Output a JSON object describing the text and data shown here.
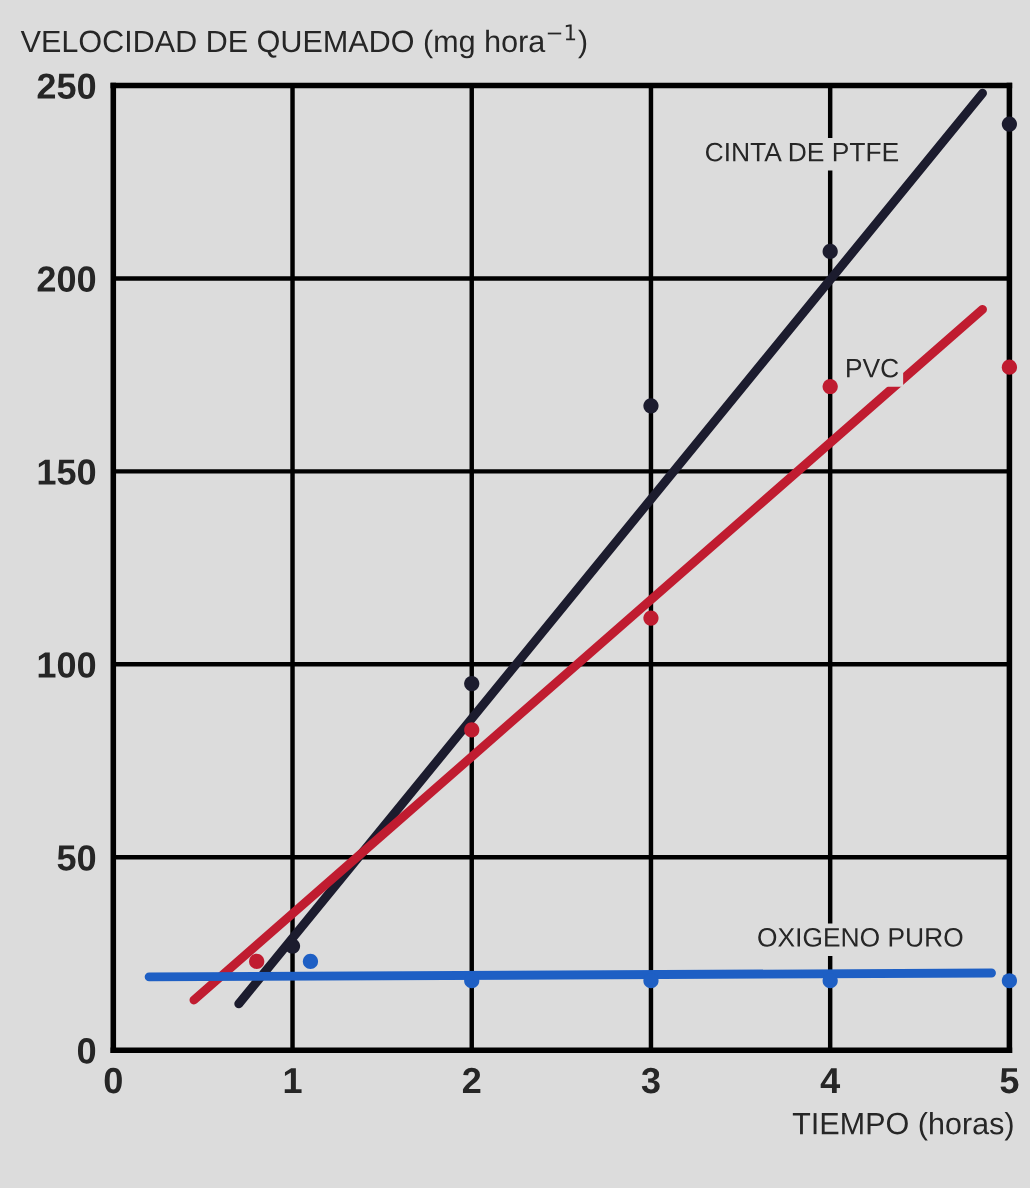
{
  "chart_data": {
    "type": "scatter",
    "ylabel": "VELOCIDAD DE QUEMADO (mg hora$^{−1}$)",
    "xlabel": "TIEMPO (horas)",
    "xlim": [
      0,
      5
    ],
    "xticks": [
      0,
      1,
      2,
      3,
      4,
      5
    ],
    "ylim": [
      0,
      250
    ],
    "yticks": [
      0,
      50,
      100,
      150,
      200,
      250
    ],
    "grid": true,
    "series": [
      {
        "color": "#1c1c2e",
        "marker": "circle",
        "x": [
          1.0,
          2,
          3,
          4,
          5
        ],
        "values": [
          27,
          95,
          167,
          207,
          240
        ]
      },
      {
        "color": "#c01c30",
        "marker": "circle",
        "x": [
          0.8,
          2,
          3,
          4,
          5
        ],
        "values": [
          23,
          83,
          112,
          172,
          177
        ]
      },
      {
        "color": "#1e5fc4",
        "marker": "circle",
        "x": [
          1.1,
          2,
          3,
          4,
          5
        ],
        "values": [
          23,
          18,
          18,
          18,
          18
        ]
      },
      {
        "type": "line",
        "name": "CINTA DE PTFE",
        "color": "#1c1c2e",
        "x": [
          0.7,
          4.85
        ],
        "values": [
          12,
          248
        ]
      },
      {
        "type": "line",
        "name": "PVC",
        "color": "#c01c30",
        "x": [
          0.45,
          4.85
        ],
        "values": [
          13,
          192
        ]
      },
      {
        "type": "line",
        "name": "OXIGENO PURO",
        "color": "#1e5fc4",
        "x": [
          0.2,
          4.9
        ],
        "values": [
          19,
          20
        ]
      }
    ]
  }
}
